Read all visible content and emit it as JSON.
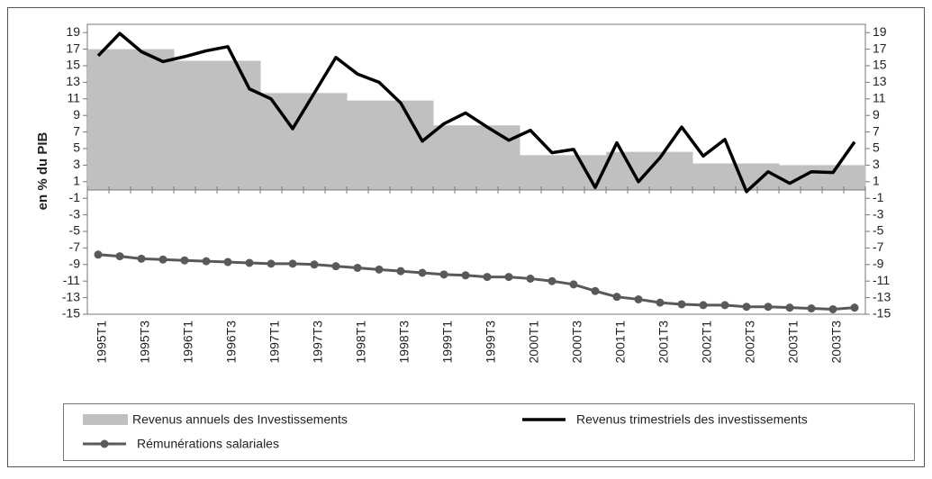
{
  "chart_data": {
    "type": "bar-line",
    "y_label": "en % du PIB",
    "categories": [
      "1995T1",
      null,
      "1995T3",
      null,
      "1996T1",
      null,
      "1996T3",
      null,
      "1997T1",
      null,
      "1997T3",
      null,
      "1998T1",
      null,
      "1998T3",
      null,
      "1999T1",
      null,
      "1999T3",
      null,
      "2000T1",
      null,
      "2000T3",
      null,
      "2001T1",
      null,
      "2001T3",
      null,
      "2002T1",
      null,
      "2002T3",
      null,
      "2003T1",
      null,
      "2003T3",
      null
    ],
    "series": [
      {
        "name": "Revenus annuels des Investissements",
        "type": "bar",
        "color": "#c0c0c0",
        "values": [
          17,
          17,
          17,
          17,
          15.6,
          15.6,
          15.6,
          15.6,
          11.7,
          11.7,
          11.7,
          11.7,
          10.8,
          10.8,
          10.8,
          10.8,
          7.8,
          7.8,
          7.8,
          7.8,
          4.2,
          4.2,
          4.2,
          4.2,
          4.6,
          4.6,
          4.6,
          4.6,
          3.2,
          3.2,
          3.2,
          3.2,
          3.0,
          3.0,
          3.0,
          3.0
        ]
      },
      {
        "name": "Revenus trimestriels des investissements",
        "type": "line",
        "color": "#000000",
        "values": [
          16.2,
          18.9,
          16.7,
          15.5,
          16.1,
          16.8,
          17.3,
          12.2,
          11.0,
          7.4,
          11.7,
          16.0,
          14.0,
          13.0,
          10.5,
          5.9,
          8.0,
          9.3,
          7.6,
          6.0,
          7.2,
          4.5,
          4.9,
          0.3,
          5.7,
          1.0,
          3.9,
          7.6,
          4.1,
          6.1,
          -0.2,
          2.2,
          0.8,
          2.2,
          2.1,
          5.8
        ]
      },
      {
        "name": "Rémunérations salariales",
        "type": "line-marker",
        "color": "#595959",
        "values": [
          -7.8,
          -8.0,
          -8.3,
          -8.4,
          -8.5,
          -8.6,
          -8.7,
          -8.8,
          -8.9,
          -8.9,
          -9.0,
          -9.2,
          -9.4,
          -9.6,
          -9.8,
          -10.0,
          -10.2,
          -10.3,
          -10.5,
          -10.5,
          -10.7,
          -11.0,
          -11.4,
          -12.2,
          -12.9,
          -13.2,
          -13.6,
          -13.8,
          -13.9,
          -13.9,
          -14.1,
          -14.1,
          -14.2,
          -14.3,
          -14.4,
          -14.2
        ]
      }
    ],
    "ylim": [
      -15,
      20
    ],
    "yticks": [
      -15,
      -13,
      -11,
      -9,
      -7,
      -5,
      -3,
      -1,
      1,
      3,
      5,
      7,
      9,
      11,
      13,
      15,
      17,
      19
    ],
    "y2lim": [
      -15,
      20
    ],
    "y2ticks": [
      -15,
      -13,
      -11,
      -9,
      -7,
      -5,
      -3,
      -1,
      1,
      3,
      5,
      7,
      9,
      11,
      13,
      15,
      17,
      19
    ],
    "legend": "bottom"
  }
}
